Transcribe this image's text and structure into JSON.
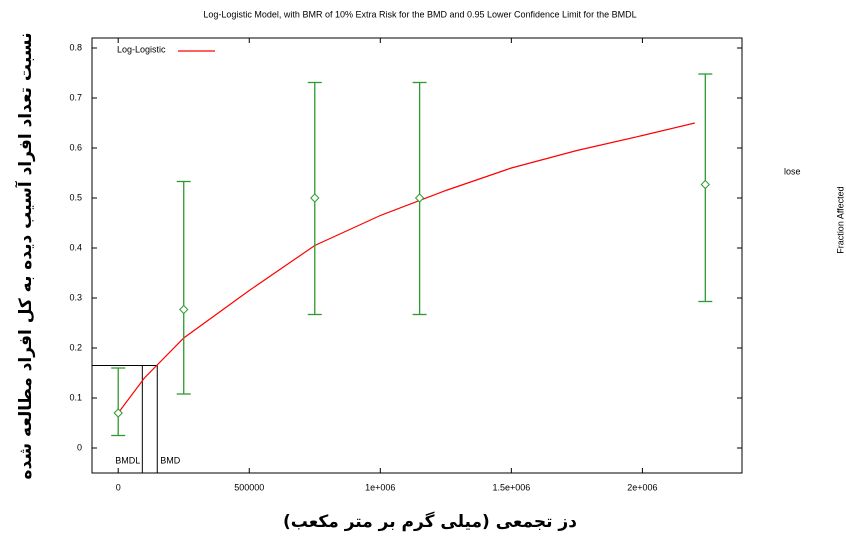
{
  "chart_data": {
    "type": "dose-response",
    "title": "Log-Logistic Model, with BMR of 10% Extra Risk for the BMD and 0.95 Lower Confidence Limit for the BMDL",
    "x_label": "دز تجمعی (میلی گرم بر متر مکعب)",
    "y_label": "نسبت تعداد افراد آسیب دیده به کل افراد مطالعه شده",
    "xlim": [
      -100000,
      2380000
    ],
    "xticks": [
      0,
      500000,
      {
        "value": 1000000,
        "label": "1e+006"
      },
      {
        "value": 1500000,
        "label": "1.5e+006"
      },
      {
        "value": 2000000,
        "label": "2e+006"
      }
    ],
    "ylim": [
      -0.05,
      0.82
    ],
    "yticks": [
      0,
      0.1,
      0.2,
      0.3,
      0.4,
      0.5,
      0.6,
      0.7,
      0.8
    ],
    "series": [
      {
        "name": "Log-Logistic",
        "color": "#ff0000",
        "x": [
          0,
          100000,
          250000,
          500000,
          750000,
          1000000,
          1250000,
          1500000,
          1750000,
          2000000,
          2200000
        ],
        "values": [
          0.07,
          0.14,
          0.22,
          0.315,
          0.405,
          0.465,
          0.515,
          0.56,
          0.595,
          0.625,
          0.65
        ]
      }
    ],
    "observed": {
      "color": "#2e9a2e",
      "x": [
        0,
        250000,
        750000,
        1150000,
        2240000
      ],
      "values": [
        0.07,
        0.277,
        0.5,
        0.5,
        0.527
      ],
      "lower": [
        0.025,
        0.108,
        0.267,
        0.267,
        0.293
      ],
      "upper": [
        0.16,
        0.533,
        0.731,
        0.731,
        0.748
      ]
    },
    "bmr": 0.165,
    "bmdl": 92000,
    "bmd": 149000,
    "annotations": {
      "bmdl_label": "BMDL",
      "bmd_label": "BMD"
    },
    "side_texts": [
      "lose",
      "Fraction Affected"
    ]
  }
}
